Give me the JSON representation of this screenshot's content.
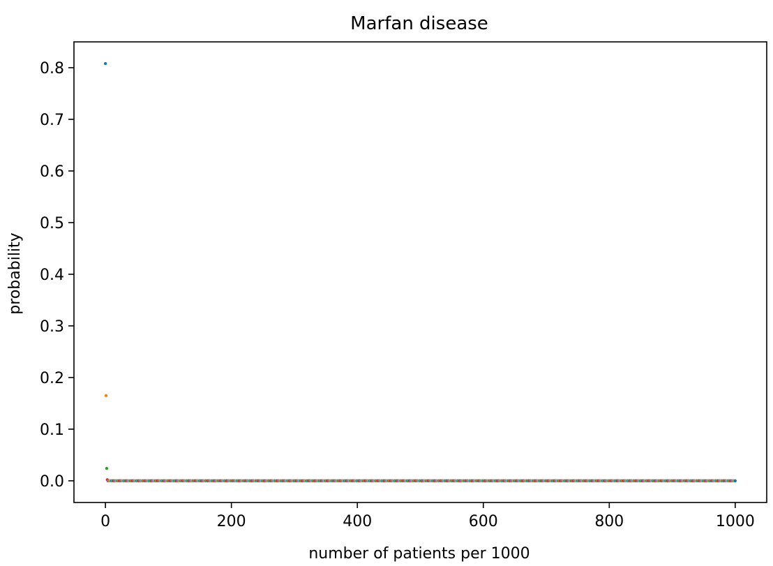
{
  "chart_data": {
    "type": "scatter",
    "title": "Marfan disease",
    "xlabel": "number of patients per 1000",
    "ylabel": "probability",
    "xlim": [
      -50,
      1050
    ],
    "ylim": [
      -0.042,
      0.85
    ],
    "xticks": [
      0,
      200,
      400,
      600,
      800,
      1000
    ],
    "xtick_labels": [
      "0",
      "200",
      "400",
      "600",
      "800",
      "1000"
    ],
    "yticks": [
      0.0,
      0.1,
      0.2,
      0.3,
      0.4,
      0.5,
      0.6,
      0.7,
      0.8
    ],
    "ytick_labels": [
      "0.0",
      "0.1",
      "0.2",
      "0.3",
      "0.4",
      "0.5",
      "0.6",
      "0.7",
      "0.8"
    ],
    "grid": false,
    "colors": [
      "#1f77b4",
      "#ff7f0e",
      "#2ca02c",
      "#d62728",
      "#9467bd",
      "#8c564b",
      "#e377c2",
      "#7f7f7f",
      "#bcbd22",
      "#17becf"
    ],
    "highlighted_points": [
      {
        "x": 0,
        "y": 0.808
      },
      {
        "x": 1,
        "y": 0.165
      },
      {
        "x": 2,
        "y": 0.024
      },
      {
        "x": 3,
        "y": 0.002
      }
    ],
    "baseline": {
      "x_start": 4,
      "x_end": 1000,
      "x_step": 1,
      "y": 0.0
    }
  }
}
